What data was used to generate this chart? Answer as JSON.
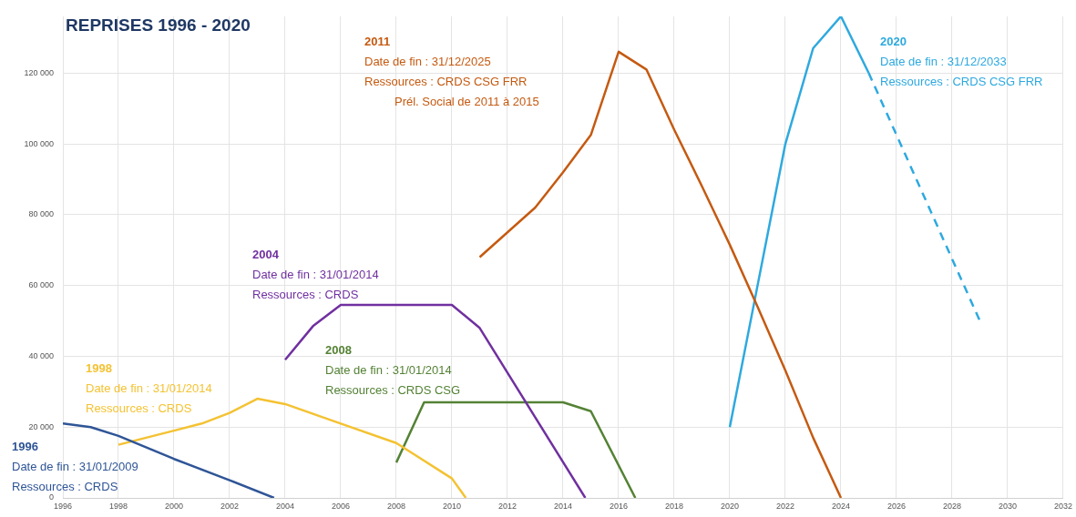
{
  "chart_data": {
    "type": "line",
    "title": "REPRISES 1996 - 2020",
    "marker": "none",
    "grid": true,
    "legend": false,
    "xlim": [
      1996,
      2032
    ],
    "xticks": [
      1996,
      1998,
      2000,
      2002,
      2004,
      2006,
      2008,
      2010,
      2012,
      2014,
      2016,
      2018,
      2020,
      2022,
      2024,
      2026,
      2028,
      2030,
      2032
    ],
    "ylim": [
      0,
      136000
    ],
    "yticks": [
      0,
      {
        "value": 20000,
        "label": "20 000"
      },
      {
        "value": 40000,
        "label": "40 000"
      },
      {
        "value": 60000,
        "label": "60 000"
      },
      {
        "value": 80000,
        "label": "80 000"
      },
      {
        "value": 100000,
        "label": "100 000"
      },
      {
        "value": 120000,
        "label": "120 000"
      }
    ],
    "series": [
      {
        "name": "1996",
        "color": "#2f5597",
        "x": [
          1996,
          1997,
          1998,
          2000,
          2002,
          2003.6
        ],
        "values": [
          21000,
          20000,
          17500,
          11000,
          5000,
          0
        ]
      },
      {
        "name": "1998",
        "color": "#f4c232",
        "x": [
          1998,
          2000,
          2001,
          2002,
          2003,
          2004,
          2006,
          2008,
          2010,
          2010.5
        ],
        "values": [
          15000,
          19000,
          21000,
          24000,
          28000,
          26500,
          21000,
          15500,
          5500,
          0
        ]
      },
      {
        "name": "2004",
        "color": "#7030a0",
        "x": [
          2004,
          2005,
          2006,
          2010,
          2011,
          2014.8
        ],
        "values": [
          39000,
          48500,
          54500,
          54500,
          48000,
          0
        ]
      },
      {
        "name": "2008",
        "color": "#548235",
        "x": [
          2008,
          2009,
          2014,
          2015,
          2016.6
        ],
        "values": [
          10000,
          27000,
          27000,
          24500,
          0
        ]
      },
      {
        "name": "2011",
        "color": "#c55a11",
        "x": [
          2011,
          2012,
          2013,
          2014,
          2015,
          2016,
          2017,
          2018,
          2019,
          2020,
          2021,
          2022,
          2023,
          2024
        ],
        "values": [
          68000,
          75000,
          82000,
          92000,
          102500,
          126000,
          121000,
          104000,
          88000,
          71500,
          54000,
          36000,
          17000,
          0
        ]
      },
      {
        "name": "2020",
        "color": "#2ea9df",
        "x": [
          2020,
          2021,
          2022,
          2023,
          2024,
          2025
        ],
        "values": [
          20000,
          60000,
          100000,
          127000,
          136000,
          120000
        ]
      },
      {
        "color": "#2ea9df",
        "line_style": "dashed",
        "x": [
          2025,
          2029
        ],
        "values": [
          120000,
          50000
        ]
      }
    ],
    "annotations": [
      "Date de fin : 31/01/2009\nRessources : CRDS",
      "Date de fin : 31/01/2014\nRessources : CRDS",
      "Date de fin : 31/01/2014\nRessources : CRDS",
      "Date de fin : 31/01/2014\nRessources : CRDS CSG",
      "Date de fin : 31/12/2025\nRessources : CRDS CSG FRR\nPrél. Social de 2011 à 2015",
      "Date de fin : 31/12/2033\nRessources : CRDS CSG FRR"
    ]
  }
}
